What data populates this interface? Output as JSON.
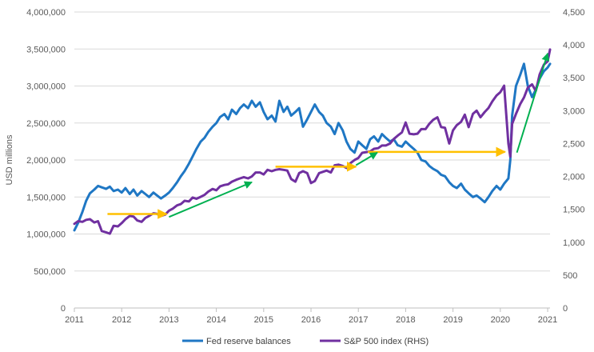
{
  "chart_data": {
    "type": "line",
    "ylabel": "USD millions",
    "x_range": [
      2011,
      2021.05
    ],
    "y_left_range": [
      0,
      4000000
    ],
    "y_right_range": [
      0,
      4500
    ],
    "x_ticks": [
      "2011",
      "2012",
      "2013",
      "2014",
      "2015",
      "2016",
      "2017",
      "2018",
      "2019",
      "2020",
      "2021"
    ],
    "y_left_ticks": [
      "0",
      "500,000",
      "1,000,000",
      "1,500,000",
      "2,000,000",
      "2,500,000",
      "3,000,000",
      "3,500,000",
      "4,000,000"
    ],
    "y_right_ticks": [
      "0",
      "500",
      "1,000",
      "1,500",
      "2,000",
      "2,500",
      "3,000",
      "3,500",
      "4,000",
      "4,500"
    ],
    "grid": true,
    "legend_position": "bottom",
    "series": [
      {
        "name": "Fed reserve balances",
        "axis": "left",
        "color": "#1f77c4",
        "points": [
          [
            2011.0,
            1050000
          ],
          [
            2011.08,
            1150000
          ],
          [
            2011.17,
            1300000
          ],
          [
            2011.25,
            1450000
          ],
          [
            2011.33,
            1550000
          ],
          [
            2011.42,
            1600000
          ],
          [
            2011.5,
            1650000
          ],
          [
            2011.58,
            1630000
          ],
          [
            2011.67,
            1610000
          ],
          [
            2011.75,
            1640000
          ],
          [
            2011.83,
            1580000
          ],
          [
            2011.92,
            1600000
          ],
          [
            2012.0,
            1560000
          ],
          [
            2012.08,
            1620000
          ],
          [
            2012.17,
            1540000
          ],
          [
            2012.25,
            1600000
          ],
          [
            2012.33,
            1520000
          ],
          [
            2012.42,
            1580000
          ],
          [
            2012.5,
            1540000
          ],
          [
            2012.58,
            1500000
          ],
          [
            2012.67,
            1560000
          ],
          [
            2012.75,
            1520000
          ],
          [
            2012.83,
            1480000
          ],
          [
            2012.92,
            1520000
          ],
          [
            2013.0,
            1560000
          ],
          [
            2013.08,
            1620000
          ],
          [
            2013.17,
            1700000
          ],
          [
            2013.25,
            1780000
          ],
          [
            2013.33,
            1850000
          ],
          [
            2013.42,
            1950000
          ],
          [
            2013.5,
            2050000
          ],
          [
            2013.58,
            2150000
          ],
          [
            2013.67,
            2250000
          ],
          [
            2013.75,
            2300000
          ],
          [
            2013.83,
            2380000
          ],
          [
            2013.92,
            2450000
          ],
          [
            2014.0,
            2500000
          ],
          [
            2014.08,
            2580000
          ],
          [
            2014.17,
            2620000
          ],
          [
            2014.25,
            2550000
          ],
          [
            2014.33,
            2680000
          ],
          [
            2014.42,
            2620000
          ],
          [
            2014.5,
            2700000
          ],
          [
            2014.58,
            2750000
          ],
          [
            2014.67,
            2700000
          ],
          [
            2014.75,
            2800000
          ],
          [
            2014.83,
            2720000
          ],
          [
            2014.92,
            2780000
          ],
          [
            2015.0,
            2650000
          ],
          [
            2015.08,
            2550000
          ],
          [
            2015.17,
            2600000
          ],
          [
            2015.25,
            2520000
          ],
          [
            2015.33,
            2800000
          ],
          [
            2015.42,
            2650000
          ],
          [
            2015.5,
            2720000
          ],
          [
            2015.58,
            2600000
          ],
          [
            2015.67,
            2650000
          ],
          [
            2015.75,
            2700000
          ],
          [
            2015.83,
            2450000
          ],
          [
            2015.92,
            2550000
          ],
          [
            2016.0,
            2650000
          ],
          [
            2016.08,
            2750000
          ],
          [
            2016.17,
            2650000
          ],
          [
            2016.25,
            2600000
          ],
          [
            2016.33,
            2500000
          ],
          [
            2016.42,
            2450000
          ],
          [
            2016.5,
            2350000
          ],
          [
            2016.58,
            2500000
          ],
          [
            2016.67,
            2400000
          ],
          [
            2016.75,
            2250000
          ],
          [
            2016.83,
            2150000
          ],
          [
            2016.92,
            2100000
          ],
          [
            2017.0,
            2250000
          ],
          [
            2017.08,
            2200000
          ],
          [
            2017.17,
            2150000
          ],
          [
            2017.25,
            2280000
          ],
          [
            2017.33,
            2320000
          ],
          [
            2017.42,
            2250000
          ],
          [
            2017.5,
            2350000
          ],
          [
            2017.58,
            2300000
          ],
          [
            2017.67,
            2250000
          ],
          [
            2017.75,
            2280000
          ],
          [
            2017.83,
            2200000
          ],
          [
            2017.92,
            2180000
          ],
          [
            2018.0,
            2250000
          ],
          [
            2018.08,
            2200000
          ],
          [
            2018.17,
            2150000
          ],
          [
            2018.25,
            2100000
          ],
          [
            2018.33,
            2000000
          ],
          [
            2018.42,
            1980000
          ],
          [
            2018.5,
            1920000
          ],
          [
            2018.58,
            1880000
          ],
          [
            2018.67,
            1850000
          ],
          [
            2018.75,
            1800000
          ],
          [
            2018.83,
            1780000
          ],
          [
            2018.92,
            1700000
          ],
          [
            2019.0,
            1650000
          ],
          [
            2019.08,
            1620000
          ],
          [
            2019.17,
            1680000
          ],
          [
            2019.25,
            1600000
          ],
          [
            2019.33,
            1550000
          ],
          [
            2019.42,
            1500000
          ],
          [
            2019.5,
            1520000
          ],
          [
            2019.58,
            1480000
          ],
          [
            2019.67,
            1430000
          ],
          [
            2019.75,
            1500000
          ],
          [
            2019.83,
            1580000
          ],
          [
            2019.92,
            1650000
          ],
          [
            2020.0,
            1600000
          ],
          [
            2020.08,
            1680000
          ],
          [
            2020.17,
            1750000
          ],
          [
            2020.21,
            2000000
          ],
          [
            2020.25,
            2600000
          ],
          [
            2020.33,
            3000000
          ],
          [
            2020.42,
            3150000
          ],
          [
            2020.5,
            3300000
          ],
          [
            2020.58,
            3000000
          ],
          [
            2020.67,
            2850000
          ],
          [
            2020.75,
            2950000
          ],
          [
            2020.83,
            3100000
          ],
          [
            2020.92,
            3200000
          ],
          [
            2021.0,
            3250000
          ],
          [
            2021.05,
            3300000
          ]
        ]
      },
      {
        "name": "S&P 500 index (RHS)",
        "axis": "right",
        "color": "#7030a0",
        "points": [
          [
            2011.0,
            1280
          ],
          [
            2011.08,
            1320
          ],
          [
            2011.17,
            1310
          ],
          [
            2011.25,
            1340
          ],
          [
            2011.33,
            1350
          ],
          [
            2011.42,
            1300
          ],
          [
            2011.5,
            1320
          ],
          [
            2011.58,
            1170
          ],
          [
            2011.67,
            1150
          ],
          [
            2011.75,
            1130
          ],
          [
            2011.83,
            1250
          ],
          [
            2011.92,
            1240
          ],
          [
            2012.0,
            1290
          ],
          [
            2012.08,
            1350
          ],
          [
            2012.17,
            1400
          ],
          [
            2012.25,
            1390
          ],
          [
            2012.33,
            1330
          ],
          [
            2012.42,
            1310
          ],
          [
            2012.5,
            1370
          ],
          [
            2012.58,
            1400
          ],
          [
            2012.67,
            1440
          ],
          [
            2012.75,
            1430
          ],
          [
            2012.83,
            1400
          ],
          [
            2012.92,
            1420
          ],
          [
            2013.0,
            1480
          ],
          [
            2013.08,
            1510
          ],
          [
            2013.17,
            1560
          ],
          [
            2013.25,
            1580
          ],
          [
            2013.33,
            1630
          ],
          [
            2013.42,
            1620
          ],
          [
            2013.5,
            1680
          ],
          [
            2013.58,
            1660
          ],
          [
            2013.67,
            1690
          ],
          [
            2013.75,
            1720
          ],
          [
            2013.83,
            1770
          ],
          [
            2013.92,
            1810
          ],
          [
            2014.0,
            1790
          ],
          [
            2014.08,
            1850
          ],
          [
            2014.17,
            1870
          ],
          [
            2014.25,
            1880
          ],
          [
            2014.33,
            1920
          ],
          [
            2014.42,
            1950
          ],
          [
            2014.5,
            1970
          ],
          [
            2014.58,
            1990
          ],
          [
            2014.67,
            1970
          ],
          [
            2014.75,
            2000
          ],
          [
            2014.83,
            2060
          ],
          [
            2014.92,
            2060
          ],
          [
            2015.0,
            2030
          ],
          [
            2015.08,
            2100
          ],
          [
            2015.17,
            2080
          ],
          [
            2015.25,
            2100
          ],
          [
            2015.33,
            2110
          ],
          [
            2015.42,
            2100
          ],
          [
            2015.5,
            2090
          ],
          [
            2015.58,
            1960
          ],
          [
            2015.67,
            1920
          ],
          [
            2015.75,
            2050
          ],
          [
            2015.83,
            2080
          ],
          [
            2015.92,
            2050
          ],
          [
            2016.0,
            1900
          ],
          [
            2016.08,
            1930
          ],
          [
            2016.17,
            2050
          ],
          [
            2016.25,
            2070
          ],
          [
            2016.33,
            2090
          ],
          [
            2016.42,
            2060
          ],
          [
            2016.5,
            2170
          ],
          [
            2016.58,
            2180
          ],
          [
            2016.67,
            2160
          ],
          [
            2016.75,
            2130
          ],
          [
            2016.83,
            2200
          ],
          [
            2016.92,
            2250
          ],
          [
            2017.0,
            2280
          ],
          [
            2017.08,
            2360
          ],
          [
            2017.17,
            2370
          ],
          [
            2017.25,
            2380
          ],
          [
            2017.33,
            2420
          ],
          [
            2017.42,
            2430
          ],
          [
            2017.5,
            2470
          ],
          [
            2017.58,
            2470
          ],
          [
            2017.67,
            2500
          ],
          [
            2017.75,
            2570
          ],
          [
            2017.83,
            2620
          ],
          [
            2017.92,
            2670
          ],
          [
            2018.0,
            2820
          ],
          [
            2018.08,
            2650
          ],
          [
            2018.17,
            2640
          ],
          [
            2018.25,
            2650
          ],
          [
            2018.33,
            2720
          ],
          [
            2018.42,
            2720
          ],
          [
            2018.5,
            2800
          ],
          [
            2018.58,
            2860
          ],
          [
            2018.67,
            2900
          ],
          [
            2018.75,
            2750
          ],
          [
            2018.83,
            2740
          ],
          [
            2018.92,
            2500
          ],
          [
            2019.0,
            2700
          ],
          [
            2019.08,
            2780
          ],
          [
            2019.17,
            2830
          ],
          [
            2019.25,
            2940
          ],
          [
            2019.33,
            2750
          ],
          [
            2019.42,
            2950
          ],
          [
            2019.5,
            3000
          ],
          [
            2019.58,
            2900
          ],
          [
            2019.67,
            2980
          ],
          [
            2019.75,
            3040
          ],
          [
            2019.83,
            3140
          ],
          [
            2019.92,
            3230
          ],
          [
            2020.0,
            3280
          ],
          [
            2020.08,
            3380
          ],
          [
            2020.17,
            2500
          ],
          [
            2020.21,
            2300
          ],
          [
            2020.25,
            2800
          ],
          [
            2020.33,
            2950
          ],
          [
            2020.42,
            3100
          ],
          [
            2020.5,
            3200
          ],
          [
            2020.58,
            3350
          ],
          [
            2020.67,
            3400
          ],
          [
            2020.75,
            3300
          ],
          [
            2020.83,
            3550
          ],
          [
            2020.92,
            3700
          ],
          [
            2021.0,
            3750
          ],
          [
            2021.05,
            3930
          ]
        ]
      }
    ],
    "annotations": {
      "flat_arrows_color": "#ffc000",
      "rising_arrows_color": "#00b050",
      "flat_arrows": [
        {
          "x": [
            2011.7,
            2012.95
          ],
          "y_left": 1270000
        },
        {
          "x": [
            2015.25,
            2016.95
          ],
          "y_left": 1910000
        },
        {
          "x": [
            2017.2,
            2020.1
          ],
          "y_left": 2110000
        }
      ],
      "rising_arrows": [
        {
          "from": [
            2013.0,
            1230000
          ],
          "to": [
            2014.75,
            1700000
          ]
        },
        {
          "from": [
            2016.95,
            1930000
          ],
          "to": [
            2017.4,
            2100000
          ]
        },
        {
          "from": [
            2020.35,
            2100000
          ],
          "to": [
            2021.0,
            3440000
          ]
        }
      ]
    }
  }
}
